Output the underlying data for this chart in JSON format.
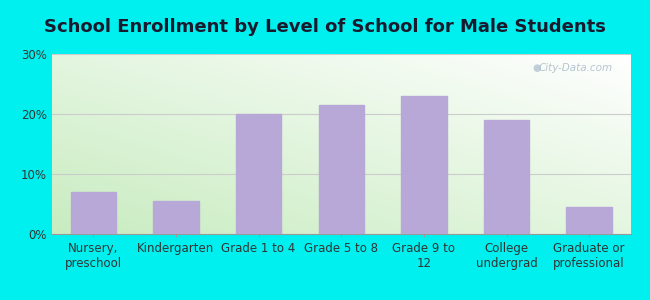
{
  "title": "School Enrollment by Level of School for Male Students",
  "categories": [
    "Nursery,\npreschool",
    "Kindergarten",
    "Grade 1 to 4",
    "Grade 5 to 8",
    "Grade 9 to\n12",
    "College\nundergrad",
    "Graduate or\nprofessional"
  ],
  "values": [
    7.0,
    5.5,
    20.0,
    21.5,
    23.0,
    19.0,
    4.5
  ],
  "bar_color": "#b8a8d8",
  "background_outer": "#00f0f0",
  "background_plot_top_right": "#ffffff",
  "background_plot_bottom_left": "#c8ecc0",
  "ylim": [
    0,
    30
  ],
  "yticks": [
    0,
    10,
    20,
    30
  ],
  "ytick_labels": [
    "0%",
    "10%",
    "20%",
    "30%"
  ],
  "title_fontsize": 13,
  "tick_fontsize": 8.5,
  "title_color": "#1a1a2e",
  "watermark": "City-Data.com",
  "grid_color": "#cccccc"
}
